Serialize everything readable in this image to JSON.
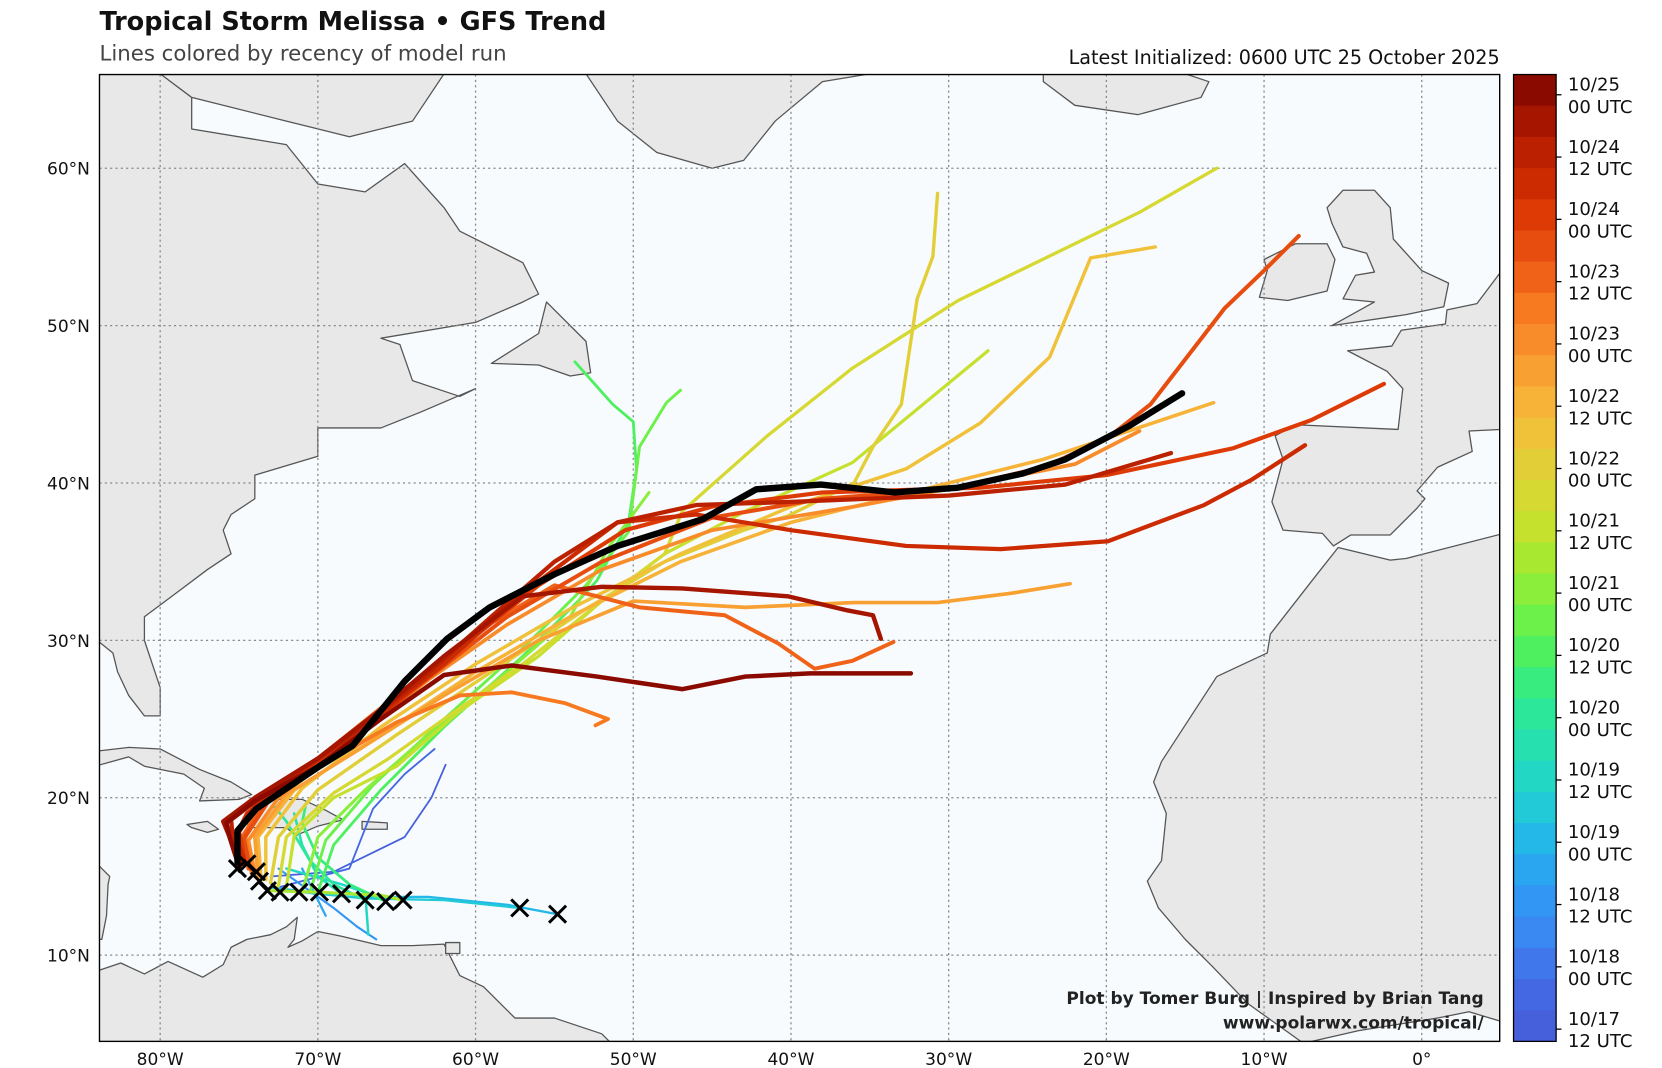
{
  "header": {
    "title": "Tropical Storm Melissa • GFS Trend",
    "subtitle": "Lines colored by recency of model run",
    "initialized": "Latest Initialized: 0600 UTC 25 October 2025"
  },
  "credit": {
    "line1": "Plot by Tomer Burg | Inspired by Brian Tang",
    "line2": "www.polarwx.com/tropical/"
  },
  "axes": {
    "lon_labels": [
      {
        "lon": -80,
        "label": "80°W"
      },
      {
        "lon": -70,
        "label": "70°W"
      },
      {
        "lon": -60,
        "label": "60°W"
      },
      {
        "lon": -50,
        "label": "50°W"
      },
      {
        "lon": -40,
        "label": "40°W"
      },
      {
        "lon": -30,
        "label": "30°W"
      },
      {
        "lon": -20,
        "label": "20°W"
      },
      {
        "lon": -10,
        "label": "10°W"
      },
      {
        "lon": 0,
        "label": "0°"
      }
    ],
    "lat_labels": [
      {
        "lat": 60,
        "label": "60°N"
      },
      {
        "lat": 50,
        "label": "50°N"
      },
      {
        "lat": 40,
        "label": "40°N"
      },
      {
        "lat": 30,
        "label": "30°N"
      },
      {
        "lat": 20,
        "label": "20°N"
      },
      {
        "lat": 10,
        "label": "10°N"
      }
    ]
  },
  "colorbar": {
    "labels": [
      [
        "10/25",
        "00 UTC"
      ],
      [
        "10/24",
        "12 UTC"
      ],
      [
        "10/24",
        "00 UTC"
      ],
      [
        "10/23",
        "12 UTC"
      ],
      [
        "10/23",
        "00 UTC"
      ],
      [
        "10/22",
        "12 UTC"
      ],
      [
        "10/22",
        "00 UTC"
      ],
      [
        "10/21",
        "12 UTC"
      ],
      [
        "10/21",
        "00 UTC"
      ],
      [
        "10/20",
        "12 UTC"
      ],
      [
        "10/20",
        "00 UTC"
      ],
      [
        "10/19",
        "12 UTC"
      ],
      [
        "10/19",
        "00 UTC"
      ],
      [
        "10/18",
        "12 UTC"
      ],
      [
        "10/18",
        "00 UTC"
      ],
      [
        "10/17",
        "12 UTC"
      ]
    ],
    "colors": [
      "#8b0a00",
      "#a51500",
      "#bb2000",
      "#cc2a00",
      "#dd3a06",
      "#e84d10",
      "#f06218",
      "#f77920",
      "#f98c2a",
      "#f9a032",
      "#f7b238",
      "#f0c23a",
      "#e2cf38",
      "#d5d932",
      "#c6e02e",
      "#a8e830",
      "#8aee3a",
      "#6cf04a",
      "#4ef060",
      "#38ec80",
      "#2ce69a",
      "#26e0b0",
      "#22d8c4",
      "#22cad8",
      "#24b8e8",
      "#2aa6f0",
      "#3296f4",
      "#3a88f2",
      "#4078ec",
      "#4468e4",
      "#4660dc"
    ]
  },
  "latest_track_color": "#000000",
  "map_colors": {
    "ocean": "#f7fbfd",
    "land": "#e8e8e8",
    "coast": "#555555",
    "grid": "#888888"
  },
  "tracks": [
    {
      "ci": 30,
      "points": [
        [
          -73,
          15
        ],
        [
          -69,
          15.3
        ],
        [
          -64.5,
          17.5
        ],
        [
          -62.8,
          20
        ],
        [
          -61.9,
          22.1
        ]
      ]
    },
    {
      "ci": 29,
      "points": [
        [
          -72.5,
          14.3
        ],
        [
          -68,
          15.5
        ],
        [
          -66.5,
          19.3
        ],
        [
          -64.5,
          21.5
        ],
        [
          -62.6,
          23.1
        ]
      ]
    },
    {
      "ci": 26,
      "points": [
        [
          -72.5,
          15.5
        ],
        [
          -69,
          13
        ],
        [
          -67.5,
          11.8
        ],
        [
          -66.3,
          11
        ]
      ]
    },
    {
      "ci": 25,
      "points": [
        [
          -71,
          15.5
        ],
        [
          -70,
          13.5
        ],
        [
          -69.5,
          12.5
        ]
      ]
    },
    {
      "ci": 24,
      "points": [
        [
          -73,
          14.3
        ],
        [
          -68,
          13.7
        ],
        [
          -63,
          13.7
        ],
        [
          -58,
          13.2
        ],
        [
          -54.8,
          12.6
        ]
      ]
    },
    {
      "ci": 23,
      "points": [
        [
          -72,
          14.1
        ],
        [
          -67,
          13.6
        ],
        [
          -62,
          13.5
        ],
        [
          -57.2,
          13
        ]
      ]
    },
    {
      "ci": 22,
      "points": [
        [
          -72,
          15.5
        ],
        [
          -68.5,
          14.5
        ],
        [
          -67,
          14
        ],
        [
          -66.8,
          11.3
        ]
      ]
    },
    {
      "ci": 21,
      "points": [
        [
          -68.5,
          13.9
        ],
        [
          -70,
          15
        ],
        [
          -71,
          17
        ],
        [
          -71.5,
          19
        ]
      ]
    },
    {
      "ci": 20,
      "points": [
        [
          -67,
          13.5
        ],
        [
          -69,
          14.5
        ],
        [
          -70.5,
          16
        ],
        [
          -72,
          18.5
        ],
        [
          -72.8,
          19.5
        ]
      ]
    },
    {
      "ci": 19,
      "points": [
        [
          -65.7,
          13.4
        ],
        [
          -68,
          14.5
        ],
        [
          -70,
          16.2
        ],
        [
          -71,
          18.4
        ],
        [
          -70.8,
          19.4
        ]
      ]
    },
    {
      "ci": 18,
      "points": [
        [
          -70,
          14
        ],
        [
          -69,
          17
        ],
        [
          -66,
          20.5
        ],
        [
          -62,
          24.5
        ],
        [
          -57,
          29
        ],
        [
          -53.5,
          32.5
        ],
        [
          -52.3,
          33.8
        ],
        [
          -50.3,
          37.5
        ],
        [
          -49.8,
          40.9
        ],
        [
          -50,
          43.9
        ],
        [
          -51.3,
          45
        ],
        [
          -53.7,
          47.7
        ]
      ]
    },
    {
      "ci": 17,
      "points": [
        [
          -70.5,
          14
        ],
        [
          -69.5,
          17.3
        ],
        [
          -66.5,
          20.8
        ],
        [
          -62,
          25
        ],
        [
          -57,
          29.5
        ],
        [
          -53,
          33.5
        ],
        [
          -50.3,
          36.9
        ],
        [
          -49.6,
          42.3
        ],
        [
          -47.9,
          45.1
        ],
        [
          -47,
          45.9
        ]
      ]
    },
    {
      "ci": 16,
      "points": [
        [
          -71,
          14
        ],
        [
          -70,
          17.5
        ],
        [
          -67,
          20.5
        ],
        [
          -63,
          24
        ],
        [
          -58,
          28
        ],
        [
          -54,
          31.5
        ],
        [
          -51.5,
          36
        ],
        [
          -49,
          39.4
        ]
      ]
    },
    {
      "ci": 15,
      "points": [
        [
          -73.2,
          14.1
        ],
        [
          -70,
          14
        ],
        [
          -66,
          13.8
        ],
        [
          -64.6,
          13.5
        ]
      ]
    },
    {
      "ci": 14,
      "points": [
        [
          -72,
          14.3
        ],
        [
          -71.5,
          17.6
        ],
        [
          -69,
          20
        ],
        [
          -65,
          22
        ],
        [
          -61,
          25.5
        ],
        [
          -56,
          29
        ],
        [
          -52,
          32.5
        ],
        [
          -48,
          35.5
        ],
        [
          -42.9,
          38.2
        ],
        [
          -36.1,
          41.3
        ],
        [
          -27.5,
          48.4
        ]
      ]
    },
    {
      "ci": 13,
      "points": [
        [
          -72.5,
          14.4
        ],
        [
          -72,
          17.5
        ],
        [
          -69,
          20.3
        ],
        [
          -65.5,
          22.5
        ],
        [
          -62,
          25
        ],
        [
          -57,
          28.5
        ],
        [
          -52,
          32.5
        ],
        [
          -48,
          35.5
        ],
        [
          -46.9,
          38.2
        ],
        [
          -41.5,
          43
        ],
        [
          -36.1,
          47.3
        ],
        [
          -29.4,
          51.6
        ],
        [
          -17.9,
          57.2
        ],
        [
          -13,
          60
        ]
      ]
    },
    {
      "ci": 12,
      "points": [
        [
          -73,
          14.6
        ],
        [
          -72.5,
          17.5
        ],
        [
          -70,
          20.5
        ],
        [
          -65,
          24
        ],
        [
          -59,
          28
        ],
        [
          -53,
          32
        ],
        [
          -48,
          35
        ],
        [
          -43,
          37
        ],
        [
          -40.2,
          37.9
        ],
        [
          -36,
          40
        ],
        [
          -34.8,
          42.3
        ],
        [
          -33,
          45
        ],
        [
          -32,
          51.7
        ],
        [
          -31,
          54.4
        ],
        [
          -30.7,
          58.4
        ]
      ]
    },
    {
      "ci": 11,
      "points": [
        [
          -73.3,
          14.8
        ],
        [
          -73.3,
          17.5
        ],
        [
          -71,
          20.6
        ],
        [
          -66,
          24.5
        ],
        [
          -60,
          28.5
        ],
        [
          -54,
          32
        ],
        [
          -47,
          35.5
        ],
        [
          -40,
          38.5
        ],
        [
          -32.7,
          40.9
        ],
        [
          -28,
          43.8
        ],
        [
          -23.6,
          48
        ],
        [
          -21,
          54.3
        ],
        [
          -16.9,
          55
        ]
      ]
    },
    {
      "ci": 10,
      "points": [
        [
          -73.6,
          14.8
        ],
        [
          -73.8,
          17.5
        ],
        [
          -71.5,
          20.5
        ],
        [
          -66,
          24
        ],
        [
          -60,
          28
        ],
        [
          -54,
          31.5
        ],
        [
          -47,
          35
        ],
        [
          -40,
          37.5
        ],
        [
          -32,
          39.5
        ],
        [
          -24,
          41.5
        ],
        [
          -18,
          43.5
        ],
        [
          -13.2,
          45.1
        ]
      ]
    },
    {
      "ci": 9,
      "points": [
        [
          -73.8,
          15
        ],
        [
          -74,
          17.5
        ],
        [
          -72,
          20.2
        ],
        [
          -67.5,
          23
        ],
        [
          -62,
          26.5
        ],
        [
          -56,
          30
        ],
        [
          -50,
          32.5
        ],
        [
          -42.9,
          32.1
        ],
        [
          -36,
          32.4
        ],
        [
          -30.7,
          32.4
        ],
        [
          -26,
          33
        ],
        [
          -22.3,
          33.6
        ]
      ]
    },
    {
      "ci": 8,
      "points": [
        [
          -74,
          15.2
        ],
        [
          -74.4,
          17.3
        ],
        [
          -72.5,
          20
        ],
        [
          -68,
          23.5
        ],
        [
          -63,
          27.5
        ],
        [
          -58,
          31
        ],
        [
          -52,
          34.5
        ],
        [
          -45,
          37
        ],
        [
          -36,
          38.5
        ],
        [
          -28,
          40
        ],
        [
          -22,
          41.2
        ],
        [
          -17.9,
          43.3
        ]
      ]
    },
    {
      "ci": 7,
      "points": [
        [
          -74.2,
          15.2
        ],
        [
          -74.6,
          17.5
        ],
        [
          -73,
          20
        ],
        [
          -69,
          22.5
        ],
        [
          -65,
          24.8
        ],
        [
          -61,
          26.5
        ],
        [
          -57.7,
          26.7
        ],
        [
          -54.3,
          26
        ],
        [
          -51.6,
          25
        ],
        [
          -52.4,
          24.6
        ]
      ]
    },
    {
      "ci": 6,
      "points": [
        [
          -74.4,
          15.5
        ],
        [
          -74.8,
          17.5
        ],
        [
          -73.5,
          19.6
        ],
        [
          -70,
          22.5
        ],
        [
          -65,
          26.5
        ],
        [
          -60,
          30.5
        ],
        [
          -55,
          33.5
        ],
        [
          -49.6,
          32.1
        ],
        [
          -44.2,
          31.6
        ],
        [
          -40.8,
          29.8
        ],
        [
          -38.5,
          28.2
        ],
        [
          -36.1,
          28.7
        ],
        [
          -33.5,
          29.9
        ]
      ]
    },
    {
      "ci": 5,
      "points": [
        [
          -74.3,
          15.5
        ],
        [
          -74.7,
          17.4
        ],
        [
          -73,
          20
        ],
        [
          -68.5,
          23.2
        ],
        [
          -63,
          27.6
        ],
        [
          -58,
          31.5
        ],
        [
          -52,
          35
        ],
        [
          -45,
          37.8
        ],
        [
          -38,
          39
        ],
        [
          -30,
          39.6
        ],
        [
          -24,
          41
        ],
        [
          -20,
          42.8
        ],
        [
          -17.2,
          45
        ],
        [
          -12.5,
          51.1
        ],
        [
          -10,
          53.5
        ],
        [
          -7.8,
          55.7
        ]
      ]
    },
    {
      "ci": 4,
      "points": [
        [
          -74.6,
          15.8
        ],
        [
          -75,
          17.8
        ],
        [
          -74,
          19.5
        ],
        [
          -71,
          21.6
        ],
        [
          -66,
          25.4
        ],
        [
          -61,
          29.5
        ],
        [
          -56,
          33.5
        ],
        [
          -50.5,
          37
        ],
        [
          -45,
          38.5
        ],
        [
          -38,
          39.4
        ],
        [
          -28,
          39.7
        ],
        [
          -20,
          40.5
        ],
        [
          -12,
          42.2
        ],
        [
          -7,
          44
        ],
        [
          -2.4,
          46.3
        ]
      ]
    },
    {
      "ci": 3,
      "points": [
        [
          -74.6,
          15.8
        ],
        [
          -75.2,
          17.6
        ],
        [
          -74.5,
          19
        ],
        [
          -72,
          21
        ],
        [
          -67,
          24.5
        ],
        [
          -62,
          28.5
        ],
        [
          -57,
          33
        ],
        [
          -51,
          37.5
        ],
        [
          -46,
          38
        ],
        [
          -40,
          37
        ],
        [
          -32.7,
          36
        ],
        [
          -26.7,
          35.8
        ],
        [
          -19.9,
          36.3
        ],
        [
          -13.8,
          38.6
        ],
        [
          -10.8,
          40.2
        ],
        [
          -7.4,
          42.4
        ]
      ]
    },
    {
      "ci": 2,
      "points": [
        [
          -74.8,
          15.8
        ],
        [
          -75.4,
          17.6
        ],
        [
          -75.5,
          18.6
        ],
        [
          -73,
          20.5
        ],
        [
          -68.5,
          23.5
        ],
        [
          -63.5,
          27.5
        ],
        [
          -59,
          31.5
        ],
        [
          -55,
          35
        ],
        [
          -51,
          37.5
        ],
        [
          -46,
          38.6
        ],
        [
          -40,
          38.8
        ],
        [
          -30,
          39.2
        ],
        [
          -22.6,
          39.9
        ],
        [
          -15.9,
          41.9
        ]
      ]
    },
    {
      "ci": 1,
      "points": [
        [
          -75,
          15.6
        ],
        [
          -75.6,
          17.5
        ],
        [
          -76,
          18.5
        ],
        [
          -74,
          20
        ],
        [
          -70,
          22.5
        ],
        [
          -66,
          25.6
        ],
        [
          -62,
          29
        ],
        [
          -57,
          32.8
        ],
        [
          -52,
          33.4
        ],
        [
          -46.9,
          33.3
        ],
        [
          -40.2,
          32.8
        ],
        [
          -36.4,
          31.9
        ],
        [
          -34.8,
          31.6
        ],
        [
          -34.3,
          30.1
        ]
      ]
    },
    {
      "ci": 0,
      "points": [
        [
          -75,
          15.6
        ],
        [
          -75.6,
          17.5
        ],
        [
          -75.8,
          18.4
        ],
        [
          -74,
          19.8
        ],
        [
          -70,
          22
        ],
        [
          -66,
          25
        ],
        [
          -62,
          27.8
        ],
        [
          -57.7,
          28.4
        ],
        [
          -52.3,
          27.7
        ],
        [
          -46.9,
          26.9
        ],
        [
          -42.9,
          27.7
        ],
        [
          -38.8,
          27.9
        ],
        [
          -32.4,
          27.9
        ]
      ]
    }
  ],
  "latest_track": [
    [
      -75.1,
      15.9
    ],
    [
      -75.1,
      17.9
    ],
    [
      -73.9,
      19.3
    ],
    [
      -69.9,
      22.0
    ],
    [
      -67.8,
      23.3
    ],
    [
      -64.5,
      27.4
    ],
    [
      -61.8,
      30.1
    ],
    [
      -59.1,
      32.1
    ],
    [
      -55.0,
      34.2
    ],
    [
      -51.0,
      36.0
    ],
    [
      -45.6,
      37.7
    ],
    [
      -42.2,
      39.6
    ],
    [
      -38.1,
      39.9
    ],
    [
      -33.4,
      39.4
    ],
    [
      -29.4,
      39.7
    ],
    [
      -25.3,
      40.6
    ],
    [
      -22.6,
      41.5
    ],
    [
      -18.6,
      43.6
    ],
    [
      -15.2,
      45.7
    ]
  ],
  "init_positions": [
    [
      -57.2,
      13.0
    ],
    [
      -54.8,
      12.6
    ],
    [
      -64.6,
      13.5
    ],
    [
      -65.7,
      13.4
    ],
    [
      -67.0,
      13.5
    ],
    [
      -68.5,
      13.9
    ],
    [
      -69.9,
      14.0
    ],
    [
      -71.2,
      14.0
    ],
    [
      -72.4,
      14.0
    ],
    [
      -73.2,
      14.1
    ],
    [
      -73.7,
      14.7
    ],
    [
      -73.9,
      15.3
    ],
    [
      -74.5,
      15.8
    ],
    [
      -75.1,
      15.5
    ]
  ]
}
